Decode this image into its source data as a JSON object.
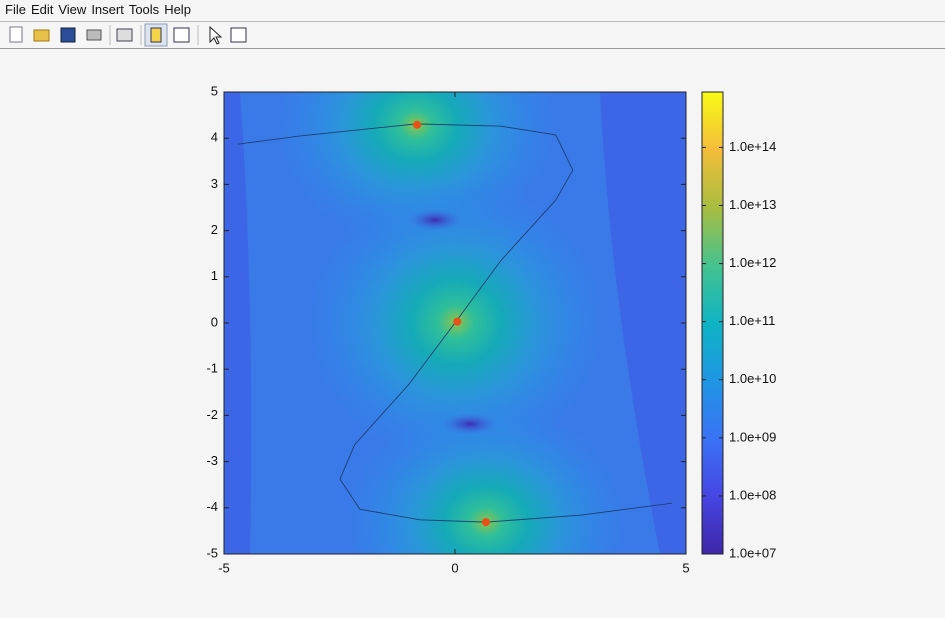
{
  "menu": [
    "File",
    "Edit",
    "View",
    "Insert",
    "Tools",
    "Help"
  ],
  "chart_data": {
    "type": "contour",
    "xlim": [
      -5,
      5
    ],
    "xticks": [
      -5,
      0,
      5
    ],
    "ylim": [
      -5,
      5
    ],
    "yticks": [
      -5,
      -4,
      -3,
      -2,
      -1,
      0,
      1,
      2,
      3,
      4,
      5
    ],
    "line": {
      "color": "#1d3f73",
      "x": [
        -4.7,
        -3.35,
        -0.84,
        1.0,
        2.18,
        2.55,
        2.18,
        1.0,
        0.02,
        -1.0,
        -2.17,
        -2.49,
        -2.06,
        -0.76,
        0.67,
        2.71,
        4.7
      ],
      "y": [
        3.87,
        4.05,
        4.31,
        4.26,
        4.07,
        3.31,
        2.66,
        1.36,
        0.03,
        -1.33,
        -2.63,
        -3.38,
        -4.03,
        -4.26,
        -4.31,
        -4.16,
        -3.9
      ]
    },
    "points": {
      "color": "#e8501a",
      "x": [
        -0.82,
        0.05,
        0.67
      ],
      "y": [
        4.29,
        0.03,
        -4.31
      ]
    },
    "colorbar": {
      "log": true,
      "lim": [
        10000000,
        900000000000000
      ],
      "ticks": [
        {
          "value": 10000000,
          "label": "1.0e+07"
        },
        {
          "value": 100000000,
          "label": "1.0e+08"
        },
        {
          "value": 1000000000,
          "label": "1.0e+09"
        },
        {
          "value": 10000000000,
          "label": "1.0e+10"
        },
        {
          "value": 100000000000,
          "label": "1.0e+11"
        },
        {
          "value": 1000000000000,
          "label": "1.0e+12"
        },
        {
          "value": 10000000000000,
          "label": "1.0e+13"
        },
        {
          "value": 100000000000000,
          "label": "1.0e+14"
        }
      ]
    }
  }
}
